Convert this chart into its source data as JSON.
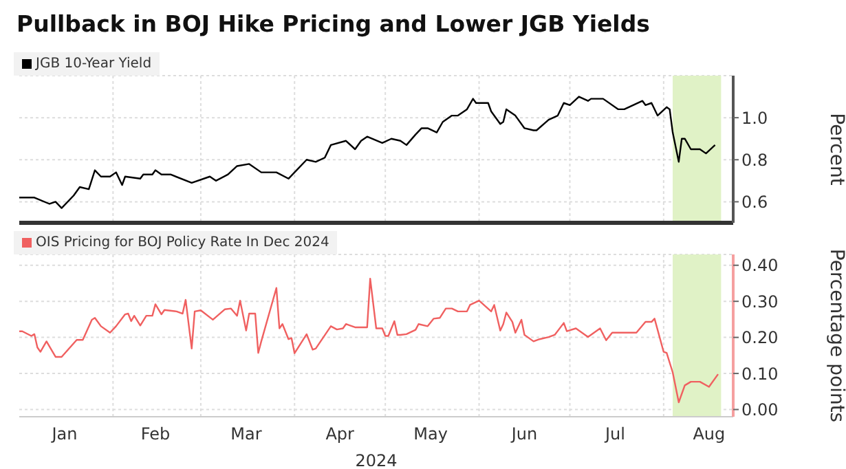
{
  "chart_data": [
    {
      "type": "line",
      "title": "Pullback in BOJ Hike Pricing and Lower JGB Yields",
      "ylabel": "Percent",
      "legend": "top left",
      "grid": true,
      "tick_labels": "y",
      "xlim": [
        "2024-01-01",
        "2024-08-24"
      ],
      "xticks": [
        {
          "value": "2024-02-01",
          "label": null
        },
        {
          "value": "2024-03-01",
          "label": null
        },
        {
          "value": "2024-04-01",
          "label": null
        },
        {
          "value": "2024-05-01",
          "label": null
        },
        {
          "value": "2024-06-01",
          "label": null
        },
        {
          "value": "2024-07-01",
          "label": null
        },
        {
          "value": "2024-08-01",
          "label": null
        }
      ],
      "ylim": [
        0.5,
        1.2
      ],
      "yticks": [
        0.6,
        0.8,
        {
          "value": 1,
          "label": "1.0"
        }
      ],
      "bands": [
        {
          "axis": "x",
          "from": "2024-08-04",
          "to": "2024-08-20",
          "color": "#e0f2c6"
        }
      ],
      "series": [
        {
          "name": "JGB 10-Year Yield",
          "color": "#000000",
          "x": [
            "2024-01-01",
            "2024-01-06",
            "2024-01-11",
            "2024-01-13",
            "2024-01-15",
            "2024-01-19",
            "2024-01-21",
            "2024-01-24",
            "2024-01-26",
            "2024-01-28",
            "2024-01-31",
            "2024-02-02",
            "2024-02-04",
            "2024-02-05",
            "2024-02-10",
            "2024-02-11",
            "2024-02-14",
            "2024-02-15",
            "2024-02-17",
            "2024-02-20",
            "2024-02-27",
            "2024-03-04",
            "2024-03-06",
            "2024-03-10",
            "2024-03-13",
            "2024-03-17",
            "2024-03-21",
            "2024-03-26",
            "2024-03-30",
            "2024-04-01",
            "2024-04-05",
            "2024-04-08",
            "2024-04-11",
            "2024-04-13",
            "2024-04-18",
            "2024-04-21",
            "2024-04-23",
            "2024-04-25",
            "2024-04-30",
            "2024-05-03",
            "2024-05-06",
            "2024-05-08",
            "2024-05-11",
            "2024-05-13",
            "2024-05-15",
            "2024-05-18",
            "2024-05-20",
            "2024-05-23",
            "2024-05-25",
            "2024-05-28",
            "2024-05-30",
            "2024-05-31",
            "2024-06-04",
            "2024-06-05",
            "2024-06-08",
            "2024-06-09",
            "2024-06-10",
            "2024-06-13",
            "2024-06-16",
            "2024-06-19",
            "2024-06-20",
            "2024-06-24",
            "2024-06-27",
            "2024-06-29",
            "2024-07-01",
            "2024-07-04",
            "2024-07-07",
            "2024-07-08",
            "2024-07-12",
            "2024-07-17",
            "2024-07-19",
            "2024-07-25",
            "2024-07-26",
            "2024-07-28",
            "2024-07-30",
            "2024-08-02",
            "2024-08-03",
            "2024-08-04",
            "2024-08-06",
            "2024-08-07",
            "2024-08-08",
            "2024-08-10",
            "2024-08-13",
            "2024-08-15",
            "2024-08-18"
          ],
          "values": [
            0.62,
            0.62,
            0.59,
            0.6,
            0.57,
            0.63,
            0.67,
            0.66,
            0.75,
            0.72,
            0.72,
            0.74,
            0.68,
            0.72,
            0.71,
            0.73,
            0.73,
            0.75,
            0.73,
            0.73,
            0.69,
            0.72,
            0.7,
            0.73,
            0.77,
            0.78,
            0.74,
            0.74,
            0.71,
            0.74,
            0.8,
            0.79,
            0.81,
            0.87,
            0.89,
            0.85,
            0.89,
            0.91,
            0.88,
            0.9,
            0.89,
            0.87,
            0.92,
            0.95,
            0.95,
            0.93,
            0.98,
            1.01,
            1.01,
            1.04,
            1.09,
            1.07,
            1.07,
            1.03,
            0.97,
            0.98,
            1.04,
            1.01,
            0.95,
            0.94,
            0.94,
            0.99,
            1.01,
            1.07,
            1.06,
            1.1,
            1.08,
            1.09,
            1.09,
            1.04,
            1.04,
            1.08,
            1.06,
            1.07,
            1.01,
            1.05,
            1.04,
            0.93,
            0.79,
            0.9,
            0.9,
            0.85,
            0.85,
            0.83,
            0.87
          ]
        }
      ]
    },
    {
      "type": "line",
      "xlabel": "2024",
      "ylabel": "Percentage points",
      "legend": "top left",
      "grid": true,
      "xlim": [
        "2024-01-01",
        "2024-08-24"
      ],
      "xticks": [
        {
          "value": "2024-01-16",
          "label": "Jan"
        },
        {
          "value": "2024-02-01",
          "label": null
        },
        {
          "value": "2024-02-15",
          "label": "Feb"
        },
        {
          "value": "2024-03-01",
          "label": null
        },
        {
          "value": "2024-03-16",
          "label": "Mar"
        },
        {
          "value": "2024-04-01",
          "label": null
        },
        {
          "value": "2024-04-16",
          "label": "Apr"
        },
        {
          "value": "2024-05-01",
          "label": null
        },
        {
          "value": "2024-05-16",
          "label": "May"
        },
        {
          "value": "2024-06-01",
          "label": null
        },
        {
          "value": "2024-06-16",
          "label": "Jun"
        },
        {
          "value": "2024-07-01",
          "label": null
        },
        {
          "value": "2024-07-16",
          "label": "Jul"
        },
        {
          "value": "2024-08-01",
          "label": null
        },
        {
          "value": "2024-08-16",
          "label": "Aug"
        }
      ],
      "ylim": [
        -0.02,
        0.43
      ],
      "yticks": [
        {
          "value": 0,
          "label": "0.00"
        },
        {
          "value": 0.1,
          "label": "0.10"
        },
        {
          "value": 0.2,
          "label": "0.20"
        },
        {
          "value": 0.3,
          "label": "0.30"
        },
        {
          "value": 0.4,
          "label": "0.40"
        }
      ],
      "bands": [
        {
          "axis": "x",
          "from": "2024-08-04",
          "to": "2024-08-20",
          "color": "#e0f2c6"
        }
      ],
      "series": [
        {
          "name": "OIS Pricing for BOJ Policy Rate In Dec 2024",
          "color": "#f06060",
          "x": [
            "2024-01-01",
            "2024-01-02",
            "2024-01-05",
            "2024-01-06",
            "2024-01-07",
            "2024-01-08",
            "2024-01-10",
            "2024-01-13",
            "2024-01-15",
            "2024-01-20",
            "2024-01-22",
            "2024-01-25",
            "2024-01-26",
            "2024-01-28",
            "2024-01-31",
            "2024-02-02",
            "2024-02-05",
            "2024-02-06",
            "2024-02-07",
            "2024-02-08",
            "2024-02-10",
            "2024-02-12",
            "2024-02-14",
            "2024-02-15",
            "2024-02-17",
            "2024-02-18",
            "2024-02-22",
            "2024-02-24",
            "2024-02-25",
            "2024-02-27",
            "2024-02-28",
            "2024-03-01",
            "2024-03-05",
            "2024-03-09",
            "2024-03-11",
            "2024-03-13",
            "2024-03-14",
            "2024-03-16",
            "2024-03-17",
            "2024-03-19",
            "2024-03-20",
            "2024-03-21",
            "2024-03-26",
            "2024-03-27",
            "2024-03-28",
            "2024-03-30",
            "2024-03-31",
            "2024-04-01",
            "2024-04-05",
            "2024-04-07",
            "2024-04-08",
            "2024-04-13",
            "2024-04-15",
            "2024-04-17",
            "2024-04-18",
            "2024-04-21",
            "2024-04-25",
            "2024-04-26",
            "2024-04-28",
            "2024-04-30",
            "2024-05-01",
            "2024-05-02",
            "2024-05-04",
            "2024-05-05",
            "2024-05-06",
            "2024-05-08",
            "2024-05-11",
            "2024-05-12",
            "2024-05-15",
            "2024-05-17",
            "2024-05-19",
            "2024-05-21",
            "2024-05-23",
            "2024-05-25",
            "2024-05-28",
            "2024-05-29",
            "2024-06-01",
            "2024-06-05",
            "2024-06-06",
            "2024-06-08",
            "2024-06-09",
            "2024-06-10",
            "2024-06-12",
            "2024-06-13",
            "2024-06-15",
            "2024-06-16",
            "2024-06-19",
            "2024-06-21",
            "2024-06-24",
            "2024-06-26",
            "2024-06-29",
            "2024-06-30",
            "2024-07-03",
            "2024-07-07",
            "2024-07-09",
            "2024-07-11",
            "2024-07-13",
            "2024-07-15",
            "2024-07-18",
            "2024-07-23",
            "2024-07-26",
            "2024-07-28",
            "2024-07-29",
            "2024-08-01",
            "2024-08-02",
            "2024-08-04",
            "2024-08-06",
            "2024-08-08",
            "2024-08-10",
            "2024-08-13",
            "2024-08-16",
            "2024-08-19"
          ],
          "values": [
            0.217,
            0.217,
            0.204,
            0.209,
            0.172,
            0.16,
            0.189,
            0.146,
            0.146,
            0.193,
            0.193,
            0.249,
            0.254,
            0.231,
            0.213,
            0.231,
            0.264,
            0.266,
            0.245,
            0.26,
            0.233,
            0.26,
            0.26,
            0.292,
            0.264,
            0.276,
            0.272,
            0.266,
            0.304,
            0.169,
            0.272,
            0.275,
            0.249,
            0.278,
            0.28,
            0.26,
            0.302,
            0.219,
            0.266,
            0.266,
            0.157,
            0.189,
            0.337,
            0.225,
            0.237,
            0.195,
            0.198,
            0.156,
            0.209,
            0.166,
            0.169,
            0.231,
            0.222,
            0.225,
            0.237,
            0.228,
            0.228,
            0.363,
            0.225,
            0.225,
            0.204,
            0.204,
            0.245,
            0.207,
            0.207,
            0.209,
            0.221,
            0.237,
            0.231,
            0.252,
            0.254,
            0.28,
            0.28,
            0.272,
            0.272,
            0.29,
            0.302,
            0.272,
            0.29,
            0.219,
            0.237,
            0.269,
            0.243,
            0.213,
            0.249,
            0.207,
            0.189,
            0.195,
            0.201,
            0.207,
            0.24,
            0.217,
            0.225,
            0.201,
            0.213,
            0.225,
            0.192,
            0.213,
            0.213,
            0.213,
            0.243,
            0.243,
            0.252,
            0.16,
            0.157,
            0.103,
            0.02,
            0.067,
            0.077,
            0.077,
            0.063,
            0.098
          ]
        }
      ]
    }
  ]
}
